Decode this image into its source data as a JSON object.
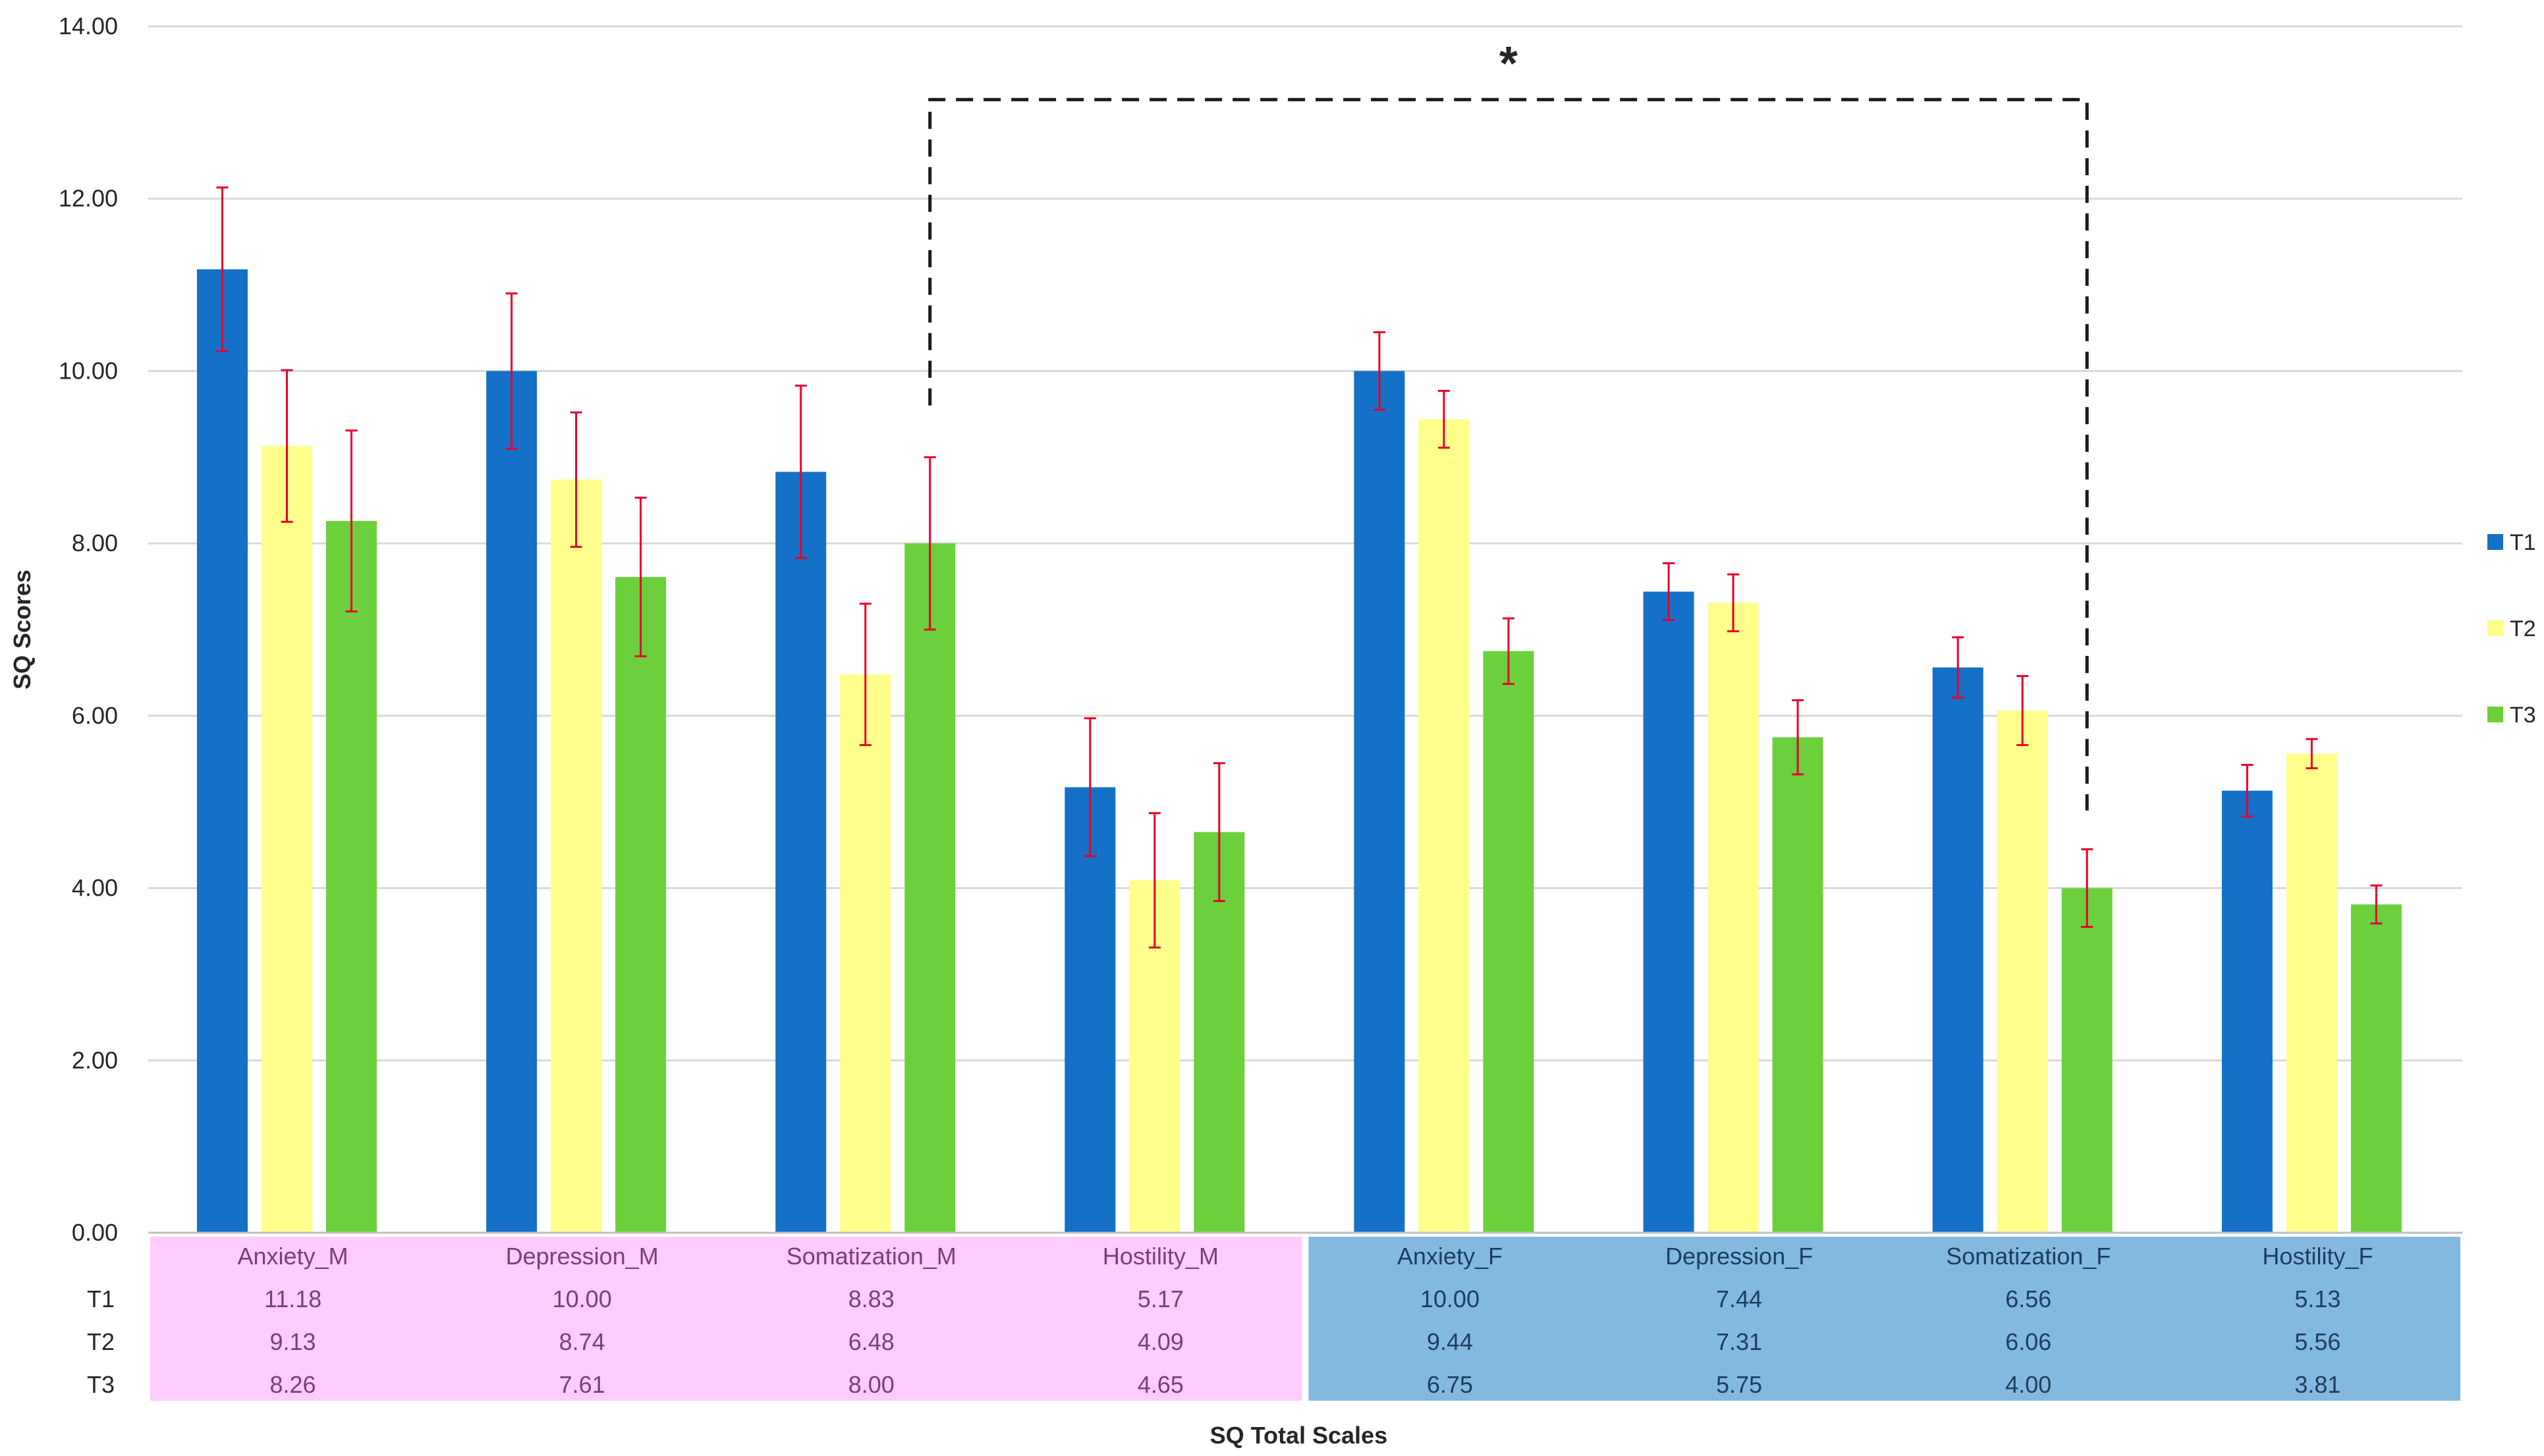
{
  "chart_data": {
    "type": "bar",
    "title": "",
    "xlabel": "SQ Total Scales",
    "ylabel": "SQ Scores",
    "ylim": [
      0,
      14
    ],
    "yticks": [
      "0.00",
      "2.00",
      "4.00",
      "6.00",
      "8.00",
      "10.00",
      "12.00",
      "14.00"
    ],
    "ytick_values": [
      0,
      2,
      4,
      6,
      8,
      10,
      12,
      14
    ],
    "grid": true,
    "legend_position": "right",
    "categories": [
      "Anxiety_M",
      "Depression_M",
      "Somatization_M",
      "Hostility_M",
      "Anxiety_F",
      "Depression_F",
      "Somatization_F",
      "Hostility_F"
    ],
    "series": [
      {
        "name": "T1",
        "color": "#1570C8",
        "values": [
          11.18,
          10.0,
          8.83,
          5.17,
          10.0,
          7.44,
          6.56,
          5.13
        ],
        "labels": [
          "11.18",
          "10.00",
          "8.83",
          "5.17",
          "10.00",
          "7.44",
          "6.56",
          "5.13"
        ],
        "err": [
          0.95,
          0.9,
          1.0,
          0.8,
          0.45,
          0.33,
          0.35,
          0.3
        ]
      },
      {
        "name": "T2",
        "color": "#FFFF8C",
        "values": [
          9.13,
          8.74,
          6.48,
          4.09,
          9.44,
          7.31,
          6.06,
          5.56
        ],
        "labels": [
          "9.13",
          "8.74",
          "6.48",
          "4.09",
          "9.44",
          "7.31",
          "6.06",
          "5.56"
        ],
        "err": [
          0.88,
          0.78,
          0.82,
          0.78,
          0.33,
          0.33,
          0.4,
          0.17
        ]
      },
      {
        "name": "T3",
        "color": "#6BD03C",
        "values": [
          8.26,
          7.61,
          8.0,
          4.65,
          6.75,
          5.75,
          4.0,
          3.81
        ],
        "labels": [
          "8.26",
          "7.61",
          "8.00",
          "4.65",
          "6.75",
          "5.75",
          "4.00",
          "3.81"
        ],
        "err": [
          1.05,
          0.92,
          1.0,
          0.8,
          0.38,
          0.43,
          0.45,
          0.22
        ]
      }
    ],
    "table_group_colors": [
      "#FFCCFF",
      "#84B9DF"
    ],
    "table_text_colors": [
      "#7A3E7A",
      "#1F3D5C"
    ],
    "error_bar_color": "#E8002A",
    "annotation": {
      "text": "*",
      "from_category": "Somatization_M",
      "to_category": "Somatization_F",
      "bracket_y": 13.15,
      "left_end_y": 9.6,
      "right_end_y": 4.9
    }
  }
}
